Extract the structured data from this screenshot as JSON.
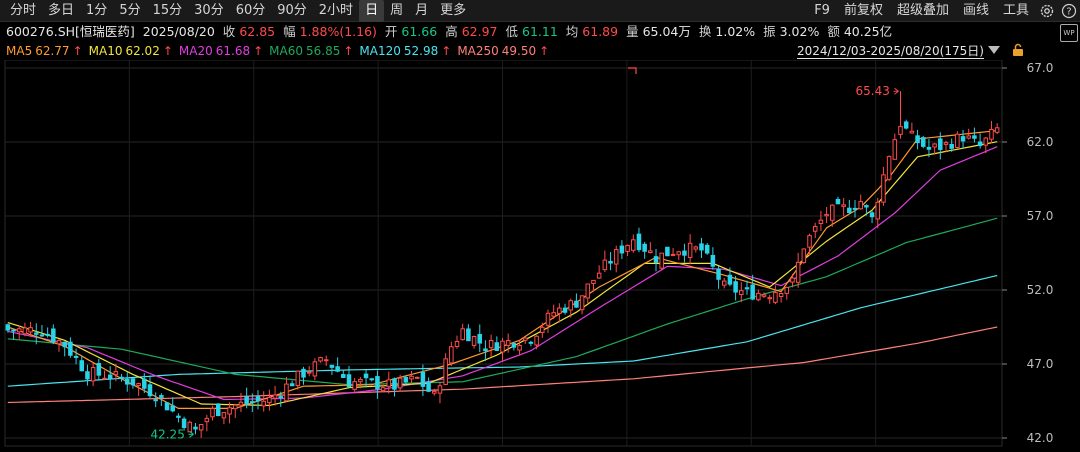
{
  "toolbar": {
    "periods": [
      "分时",
      "多日",
      "1分",
      "5分",
      "15分",
      "30分",
      "60分",
      "90分",
      "2小时",
      "日",
      "周",
      "月",
      "更多"
    ],
    "active_period": "日",
    "tools": [
      "F9",
      "前复权",
      "超级叠加",
      "画线",
      "工具"
    ],
    "tool_icons": [
      "settings-icon",
      "help-icon"
    ]
  },
  "quote": {
    "code_name": "600276.SH[恒瑞医药]",
    "date": "2025/08/20",
    "close_label": "收",
    "close": "62.85",
    "change_label": "幅",
    "change": "1.88%(1.16)",
    "open_label": "开",
    "open": "61.66",
    "high_label": "高",
    "high": "62.97",
    "low_label": "低",
    "low": "61.11",
    "avg_label": "均",
    "avg": "61.89",
    "volume_label": "量",
    "volume": "65.04万",
    "turnover_label": "换",
    "turnover": "1.02%",
    "amplitude_label": "振",
    "amplitude": "3.02%",
    "amount_label": "额",
    "amount": "40.25亿"
  },
  "range": {
    "text": "2024/12/03-2025/08/20(175日)"
  },
  "colors": {
    "up": "#ff4b4b",
    "down": "#29d3e8",
    "grid": "#2a2a2a",
    "ma5": "#ff9a2e",
    "ma10": "#f3e43a",
    "ma20": "#e03ee0",
    "ma60": "#1fa95a",
    "ma120": "#49e4ee",
    "ma250": "#ff8078"
  },
  "ma_legend": [
    {
      "label": "MA5",
      "value": "62.77",
      "arrow": "↑",
      "color": "#ff9a2e"
    },
    {
      "label": "MA10",
      "value": "62.02",
      "arrow": "↑",
      "color": "#f3e43a"
    },
    {
      "label": "MA20",
      "value": "61.68",
      "arrow": "↑",
      "color": "#e03ee0"
    },
    {
      "label": "MA60",
      "value": "56.85",
      "arrow": "↑",
      "color": "#1fa95a"
    },
    {
      "label": "MA120",
      "value": "52.98",
      "arrow": "↑",
      "color": "#49e4ee"
    },
    {
      "label": "MA250",
      "value": "49.50",
      "arrow": "↑",
      "color": "#ff8078"
    }
  ],
  "chart_data": {
    "type": "candlestick",
    "ylim": [
      42,
      67
    ],
    "y_ticks": [
      "67.0",
      "62.0",
      "57.0",
      "52.0",
      "47.0",
      "42.0"
    ],
    "candle_count": 175,
    "annotations": [
      {
        "text": "65.43",
        "type": "period-high",
        "value": 65.43
      },
      {
        "text": "42.25",
        "type": "period-low",
        "value": 42.25
      }
    ],
    "close_path": [
      [
        0,
        49.3
      ],
      [
        6,
        49.3
      ],
      [
        10,
        48.3
      ],
      [
        14,
        46.4
      ],
      [
        18,
        46.2
      ],
      [
        22,
        45.8
      ],
      [
        26,
        45.0
      ],
      [
        30,
        43.4
      ],
      [
        33,
        42.5
      ],
      [
        36,
        43.8
      ],
      [
        40,
        44.2
      ],
      [
        46,
        44.6
      ],
      [
        52,
        46.4
      ],
      [
        56,
        47.3
      ],
      [
        60,
        45.8
      ],
      [
        64,
        45.7
      ],
      [
        68,
        45.5
      ],
      [
        72,
        46.0
      ],
      [
        75,
        44.8
      ],
      [
        78,
        48.2
      ],
      [
        80,
        49.3
      ],
      [
        84,
        48.2
      ],
      [
        88,
        48.5
      ],
      [
        92,
        48.8
      ],
      [
        96,
        50.5
      ],
      [
        100,
        51.2
      ],
      [
        104,
        53.2
      ],
      [
        108,
        54.8
      ],
      [
        110,
        55.5
      ],
      [
        114,
        54.2
      ],
      [
        118,
        54.8
      ],
      [
        122,
        54.7
      ],
      [
        126,
        52.2
      ],
      [
        130,
        51.8
      ],
      [
        134,
        51.8
      ],
      [
        138,
        52.5
      ],
      [
        140,
        55.0
      ],
      [
        144,
        57.2
      ],
      [
        148,
        57.6
      ],
      [
        150,
        58.0
      ],
      [
        152,
        56.8
      ],
      [
        155,
        61.2
      ],
      [
        157,
        63.3
      ],
      [
        159,
        62.3
      ],
      [
        162,
        61.5
      ],
      [
        165,
        61.8
      ],
      [
        168,
        62.4
      ],
      [
        171,
        61.7
      ],
      [
        174,
        62.85
      ]
    ],
    "ma_paths": {
      "MA5": [
        [
          0,
          49.5
        ],
        [
          10,
          48.2
        ],
        [
          20,
          46.0
        ],
        [
          30,
          44.0
        ],
        [
          40,
          44.0
        ],
        [
          52,
          45.5
        ],
        [
          64,
          45.6
        ],
        [
          78,
          47.0
        ],
        [
          90,
          48.6
        ],
        [
          104,
          52.2
        ],
        [
          114,
          54.2
        ],
        [
          126,
          53.0
        ],
        [
          136,
          51.9
        ],
        [
          144,
          56.2
        ],
        [
          150,
          57.6
        ],
        [
          155,
          59.6
        ],
        [
          160,
          62.2
        ],
        [
          174,
          62.77
        ]
      ],
      "MA10": [
        [
          0,
          49.8
        ],
        [
          10,
          48.6
        ],
        [
          22,
          46.3
        ],
        [
          34,
          44.3
        ],
        [
          46,
          44.2
        ],
        [
          60,
          45.4
        ],
        [
          74,
          45.7
        ],
        [
          86,
          47.6
        ],
        [
          100,
          50.5
        ],
        [
          112,
          53.8
        ],
        [
          124,
          53.8
        ],
        [
          134,
          52.2
        ],
        [
          144,
          55.3
        ],
        [
          152,
          57.4
        ],
        [
          160,
          61.0
        ],
        [
          174,
          62.02
        ]
      ],
      "MA20": [
        [
          0,
          49.2
        ],
        [
          14,
          48.1
        ],
        [
          26,
          46.2
        ],
        [
          38,
          44.6
        ],
        [
          52,
          44.7
        ],
        [
          66,
          45.3
        ],
        [
          80,
          46.2
        ],
        [
          92,
          47.9
        ],
        [
          104,
          50.8
        ],
        [
          116,
          53.6
        ],
        [
          126,
          53.4
        ],
        [
          136,
          52.3
        ],
        [
          146,
          54.3
        ],
        [
          156,
          57.2
        ],
        [
          164,
          60.1
        ],
        [
          174,
          61.68
        ]
      ],
      "MA60": [
        [
          0,
          48.7
        ],
        [
          20,
          48.0
        ],
        [
          40,
          46.3
        ],
        [
          60,
          45.6
        ],
        [
          80,
          45.8
        ],
        [
          100,
          47.5
        ],
        [
          116,
          49.7
        ],
        [
          130,
          51.4
        ],
        [
          144,
          52.9
        ],
        [
          158,
          55.2
        ],
        [
          174,
          56.85
        ]
      ],
      "MA120": [
        [
          0,
          45.5
        ],
        [
          30,
          46.3
        ],
        [
          60,
          46.6
        ],
        [
          90,
          46.8
        ],
        [
          110,
          47.2
        ],
        [
          130,
          48.5
        ],
        [
          150,
          50.8
        ],
        [
          174,
          52.98
        ]
      ],
      "MA250": [
        [
          0,
          44.4
        ],
        [
          40,
          44.8
        ],
        [
          80,
          45.3
        ],
        [
          110,
          46.0
        ],
        [
          140,
          47.1
        ],
        [
          160,
          48.4
        ],
        [
          174,
          49.5
        ]
      ]
    },
    "high_index": 157,
    "low_index": 33
  }
}
